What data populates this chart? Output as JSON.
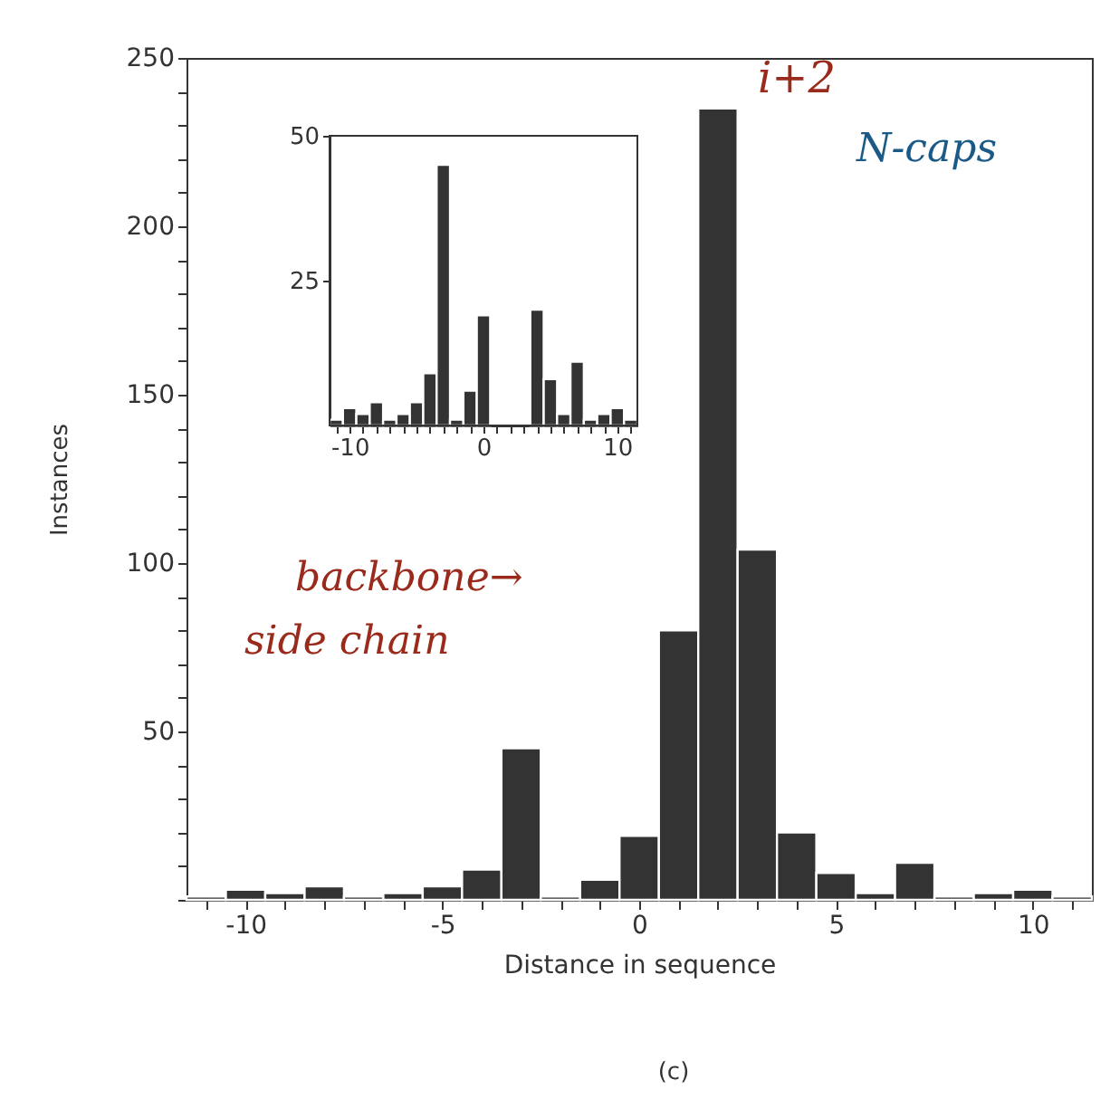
{
  "chart_data": [
    {
      "type": "histogram",
      "xlabel": "Distance in sequence",
      "ylabel": "Instances",
      "color": "#333333",
      "bins": [
        -11.5,
        -10.5,
        -9.5,
        -8.5,
        -7.5,
        -6.5,
        -5.5,
        -4.5,
        -3.5,
        -2.5,
        -1.5,
        -0.5,
        0.5,
        1.5,
        2.5,
        3.5,
        4.5,
        5.5,
        6.5,
        7.5,
        8.5,
        9.5,
        10.5,
        11.5
      ],
      "values": [
        1,
        3,
        2,
        4,
        1,
        2,
        4,
        9,
        45,
        1,
        6,
        19,
        80,
        235,
        104,
        20,
        8,
        2,
        11,
        1,
        2,
        3,
        1
      ],
      "xlim": [
        -11.5,
        11.5
      ],
      "xticks": [
        {
          "value": -11,
          "label": null
        },
        -10,
        {
          "value": -9,
          "label": null
        },
        {
          "value": -8,
          "label": null
        },
        {
          "value": -7,
          "label": null
        },
        {
          "value": -6,
          "label": null
        },
        -5,
        {
          "value": -4,
          "label": null
        },
        {
          "value": -3,
          "label": null
        },
        {
          "value": -2,
          "label": null
        },
        {
          "value": -1,
          "label": null
        },
        0,
        {
          "value": 1,
          "label": null
        },
        {
          "value": 2,
          "label": null
        },
        {
          "value": 3,
          "label": null
        },
        {
          "value": 4,
          "label": null
        },
        5,
        {
          "value": 6,
          "label": null
        },
        {
          "value": 7,
          "label": null
        },
        {
          "value": 8,
          "label": null
        },
        {
          "value": 9,
          "label": null
        },
        10,
        {
          "value": 11,
          "label": null
        }
      ],
      "ylim": [
        0,
        250
      ],
      "yticks": [
        {
          "value": 0,
          "label": null
        },
        {
          "value": 10,
          "label": null
        },
        {
          "value": 20,
          "label": null
        },
        {
          "value": 30,
          "label": null
        },
        {
          "value": 40,
          "label": null
        },
        50,
        {
          "value": 60,
          "label": null
        },
        {
          "value": 70,
          "label": null
        },
        {
          "value": 80,
          "label": null
        },
        {
          "value": 90,
          "label": null
        },
        100,
        {
          "value": 110,
          "label": null
        },
        {
          "value": 120,
          "label": null
        },
        {
          "value": 130,
          "label": null
        },
        {
          "value": 140,
          "label": null
        },
        150,
        {
          "value": 160,
          "label": null
        },
        {
          "value": 170,
          "label": null
        },
        {
          "value": 180,
          "label": null
        },
        {
          "value": 190,
          "label": null
        },
        200,
        {
          "value": 210,
          "label": null
        },
        {
          "value": 220,
          "label": null
        },
        {
          "value": 230,
          "label": null
        },
        {
          "value": 240,
          "label": null
        },
        250
      ],
      "grid": false,
      "annotations": [
        {
          "text": "i+2",
          "x": 2,
          "y": 235
        },
        "N-caps",
        "backbone→",
        "side chain",
        "(c)"
      ]
    },
    {
      "type": "histogram",
      "color": "#333333",
      "bins": [
        -11.5,
        -10.5,
        -9.5,
        -8.5,
        -7.5,
        -6.5,
        -5.5,
        -4.5,
        -3.5,
        -2.5,
        -1.5,
        -0.5,
        0.5,
        1.5,
        2.5,
        3.5,
        4.5,
        5.5,
        6.5,
        7.5,
        8.5,
        9.5,
        10.5,
        11.5
      ],
      "values": [
        1,
        3,
        2,
        4,
        1,
        2,
        4,
        9,
        45,
        1,
        6,
        19,
        null,
        null,
        null,
        20,
        8,
        2,
        11,
        1,
        2,
        3,
        1
      ],
      "xlim": [
        -11.5,
        11.5
      ],
      "xticks": [
        {
          "value": -11,
          "label": null
        },
        -10,
        {
          "value": -9,
          "label": null
        },
        {
          "value": -8,
          "label": null
        },
        {
          "value": -7,
          "label": null
        },
        {
          "value": -6,
          "label": null
        },
        {
          "value": -5,
          "label": null
        },
        {
          "value": -4,
          "label": null
        },
        {
          "value": -3,
          "label": null
        },
        {
          "value": -2,
          "label": null
        },
        {
          "value": -1,
          "label": null
        },
        0,
        {
          "value": 1,
          "label": null
        },
        {
          "value": 2,
          "label": null
        },
        {
          "value": 3,
          "label": null
        },
        {
          "value": 4,
          "label": null
        },
        {
          "value": 5,
          "label": null
        },
        {
          "value": 6,
          "label": null
        },
        {
          "value": 7,
          "label": null
        },
        {
          "value": 8,
          "label": null
        },
        {
          "value": 9,
          "label": null
        },
        10,
        {
          "value": 11,
          "label": null
        }
      ],
      "ylim": [
        0,
        50
      ],
      "yticks": [
        25,
        50
      ],
      "grid": false
    }
  ]
}
